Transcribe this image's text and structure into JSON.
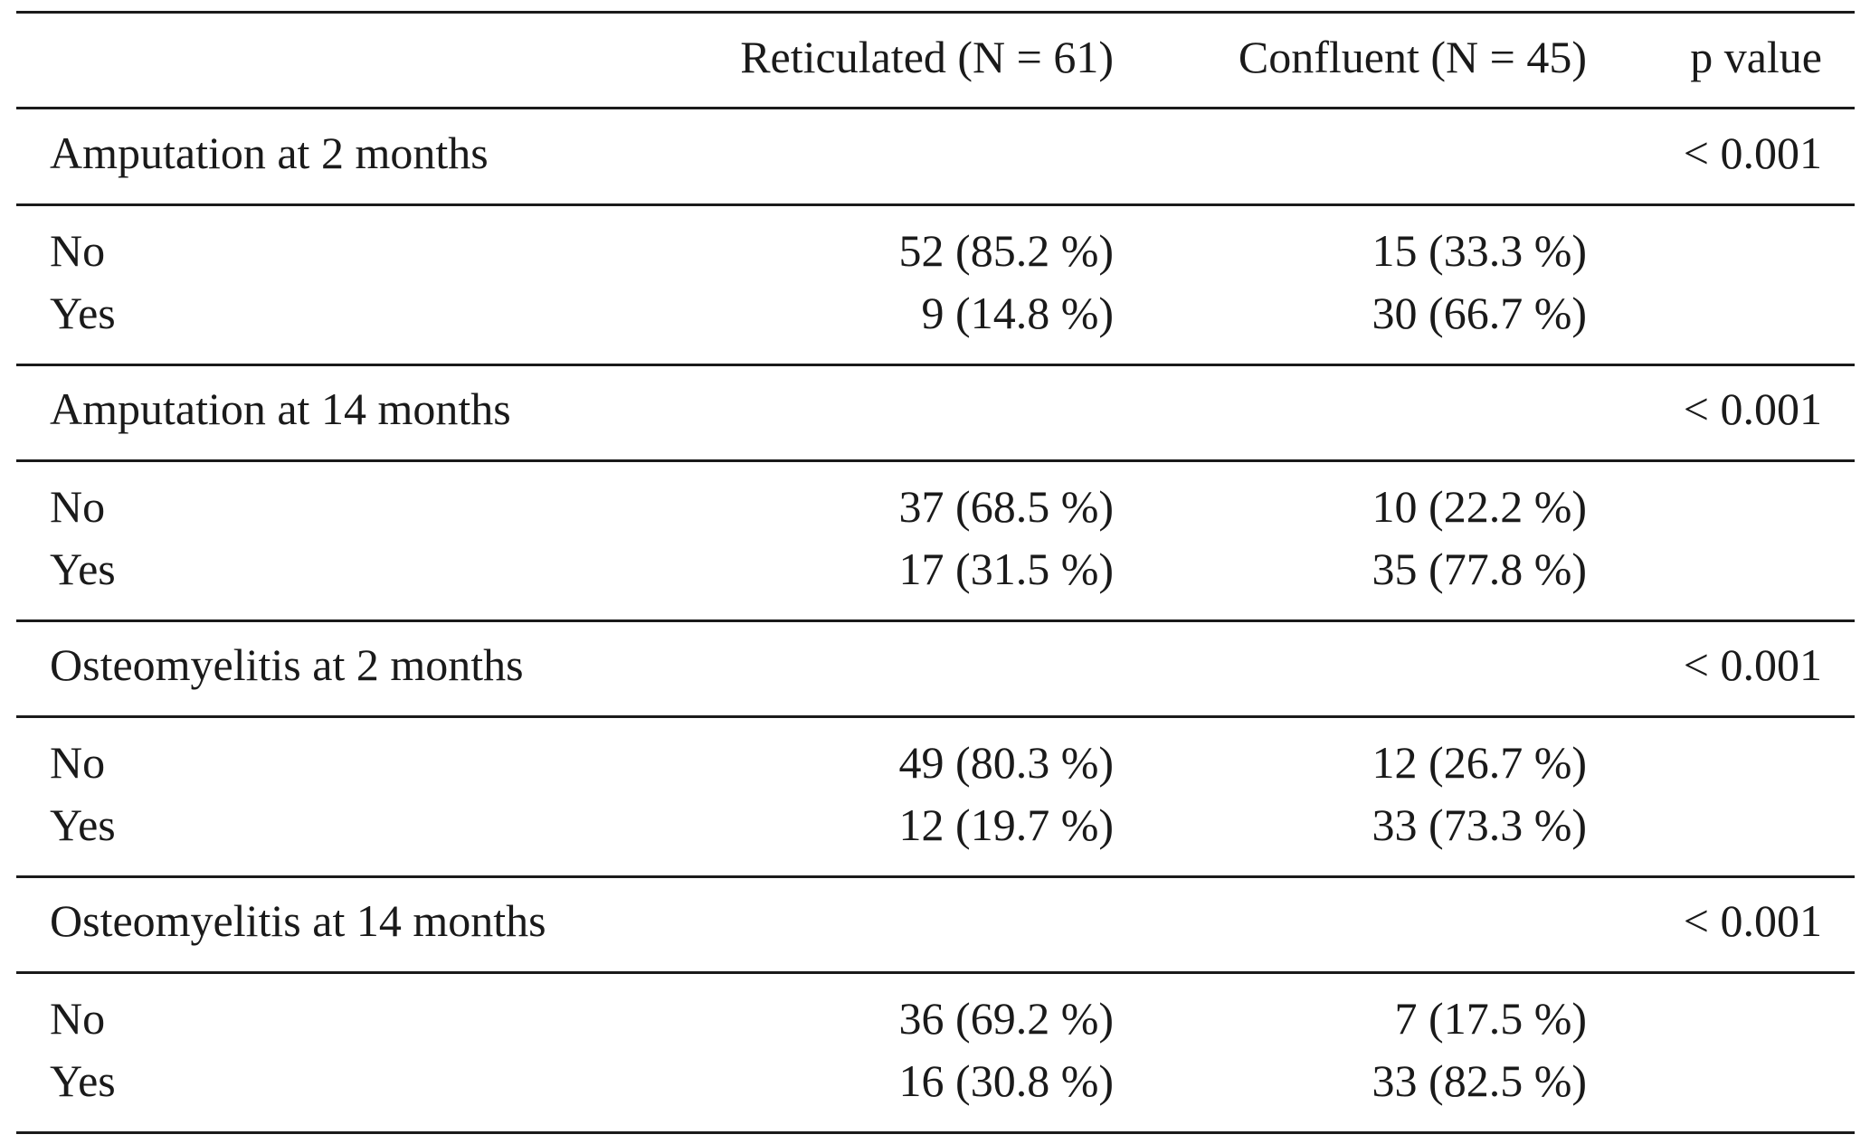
{
  "table": {
    "columns": [
      "Reticulated (N = 61)",
      "Confluent (N = 45)",
      "p value"
    ],
    "sections": [
      {
        "title": "Amputation at 2 months",
        "p_value": "< 0.001",
        "rows": [
          [
            "No",
            "52 (85.2 %)",
            "15 (33.3 %)"
          ],
          [
            "Yes",
            "9 (14.8 %)",
            "30 (66.7 %)"
          ]
        ]
      },
      {
        "title": "Amputation at 14 months",
        "p_value": "< 0.001",
        "rows": [
          [
            "No",
            "37 (68.5 %)",
            "10 (22.2 %)"
          ],
          [
            "Yes",
            "17 (31.5 %)",
            "35 (77.8 %)"
          ]
        ]
      },
      {
        "title": "Osteomyelitis at 2 months",
        "p_value": "< 0.001",
        "rows": [
          [
            "No",
            "49 (80.3 %)",
            "12 (26.7 %)"
          ],
          [
            "Yes",
            "12 (19.7 %)",
            "33 (73.3 %)"
          ]
        ]
      },
      {
        "title": "Osteomyelitis at 14 months",
        "p_value": "< 0.001",
        "rows": [
          [
            "No",
            "36 (69.2 %)",
            "7 (17.5 %)"
          ],
          [
            "Yes",
            "16 (30.8 %)",
            "33 (82.5 %)"
          ]
        ]
      }
    ]
  }
}
